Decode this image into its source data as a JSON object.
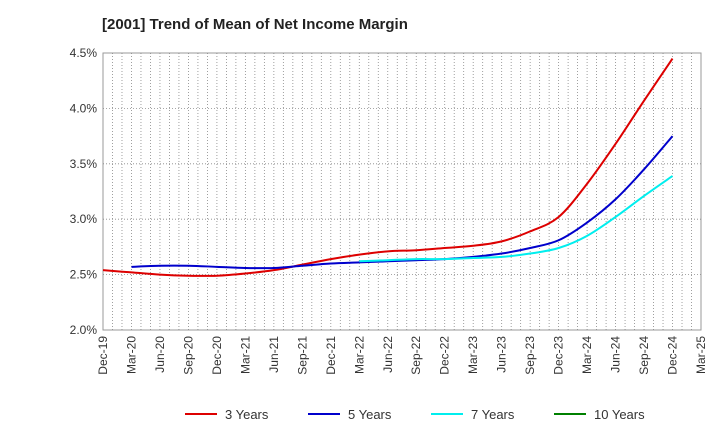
{
  "chart_data": {
    "type": "line",
    "title": "[2001]  Trend of Mean of Net Income Margin",
    "xlabel": "",
    "ylabel": "",
    "x_tick_labels": [
      "Dec-19",
      "Mar-20",
      "Jun-20",
      "Sep-20",
      "Dec-20",
      "Mar-21",
      "Jun-21",
      "Sep-21",
      "Dec-21",
      "Mar-22",
      "Jun-22",
      "Sep-22",
      "Dec-22",
      "Mar-23",
      "Jun-23",
      "Sep-23",
      "Dec-23",
      "Mar-24",
      "Jun-24",
      "Sep-24",
      "Dec-24",
      "Mar-25"
    ],
    "y_tick_labels": [
      "2.0%",
      "2.5%",
      "3.0%",
      "3.5%",
      "4.0%",
      "4.5%"
    ],
    "ylim": [
      2.0,
      4.5
    ],
    "grid": true,
    "legend_position": "bottom",
    "series": [
      {
        "name": "3 Years",
        "color": "#dd0000",
        "x": [
          "Dec-19",
          "Mar-20",
          "Jun-20",
          "Sep-20",
          "Dec-20",
          "Mar-21",
          "Jun-21",
          "Sep-21",
          "Dec-21",
          "Mar-22",
          "Jun-22",
          "Sep-22",
          "Dec-22",
          "Mar-23",
          "Jun-23",
          "Sep-23",
          "Dec-23",
          "Mar-24",
          "Jun-24",
          "Sep-24",
          "Dec-24"
        ],
        "values": [
          2.54,
          2.52,
          2.5,
          2.49,
          2.49,
          2.51,
          2.54,
          2.59,
          2.64,
          2.68,
          2.71,
          2.72,
          2.74,
          2.76,
          2.8,
          2.89,
          3.02,
          3.32,
          3.68,
          4.07,
          4.45
        ]
      },
      {
        "name": "5 Years",
        "color": "#0000cc",
        "x": [
          "Mar-20",
          "Jun-20",
          "Sep-20",
          "Dec-20",
          "Mar-21",
          "Jun-21",
          "Sep-21",
          "Dec-21",
          "Mar-22",
          "Jun-22",
          "Sep-22",
          "Dec-22",
          "Mar-23",
          "Jun-23",
          "Sep-23",
          "Dec-23",
          "Mar-24",
          "Jun-24",
          "Sep-24",
          "Dec-24"
        ],
        "values": [
          2.57,
          2.58,
          2.58,
          2.57,
          2.56,
          2.56,
          2.58,
          2.6,
          2.61,
          2.62,
          2.63,
          2.64,
          2.66,
          2.69,
          2.74,
          2.81,
          2.97,
          3.18,
          3.45,
          3.75
        ]
      },
      {
        "name": "7 Years",
        "color": "#00eeee",
        "x": [
          "Mar-22",
          "Jun-22",
          "Sep-22",
          "Dec-22",
          "Mar-23",
          "Jun-23",
          "Sep-23",
          "Dec-23",
          "Mar-24",
          "Jun-24",
          "Sep-24",
          "Dec-24"
        ],
        "values": [
          2.62,
          2.63,
          2.64,
          2.64,
          2.65,
          2.66,
          2.69,
          2.74,
          2.85,
          3.02,
          3.21,
          3.39
        ]
      },
      {
        "name": "10 Years",
        "color": "#008000",
        "x": [],
        "values": []
      }
    ]
  }
}
